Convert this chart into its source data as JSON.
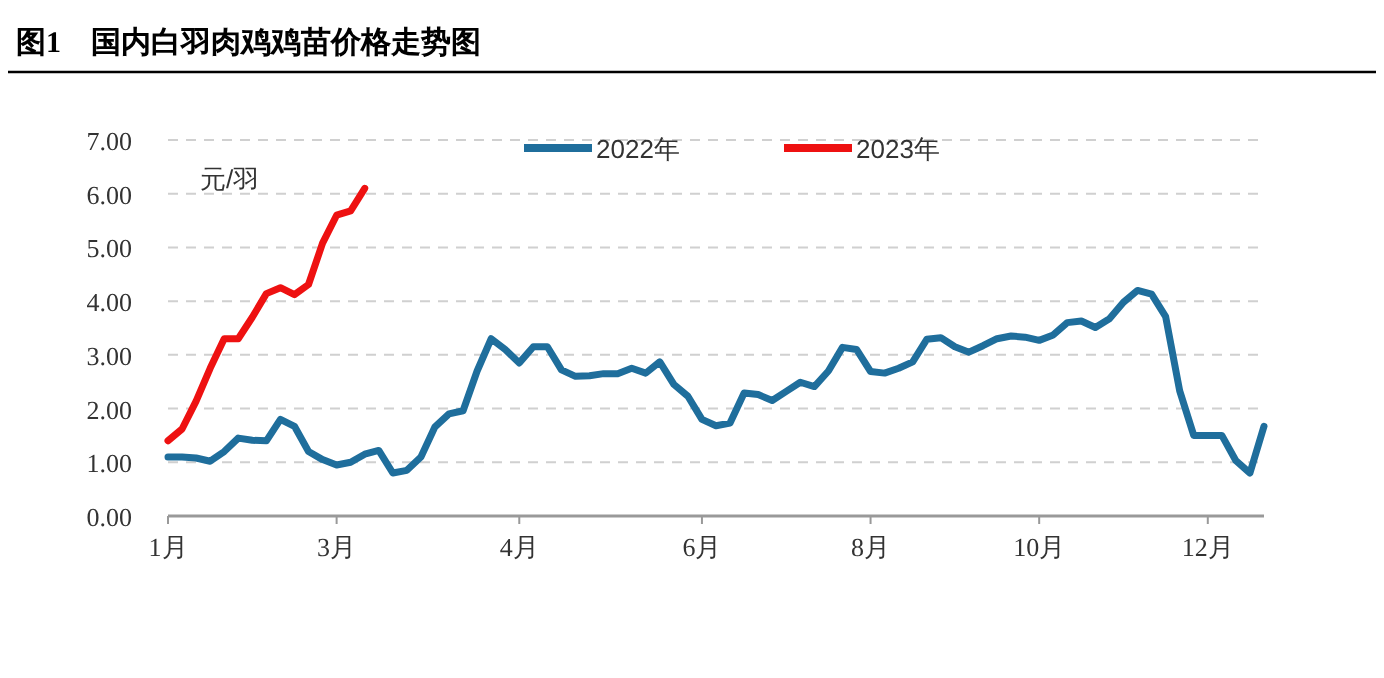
{
  "chart_data": {
    "type": "line",
    "title": "图1　国内白羽肉鸡鸡苗价格走势图",
    "ylabel": "元/羽",
    "categories": [
      "1月",
      null,
      null,
      null,
      null,
      null,
      null,
      null,
      null,
      null,
      null,
      null,
      "3月",
      null,
      null,
      null,
      null,
      null,
      null,
      null,
      null,
      null,
      null,
      null,
      null,
      "4月",
      null,
      null,
      null,
      null,
      null,
      null,
      null,
      null,
      null,
      null,
      null,
      null,
      "6月",
      null,
      null,
      null,
      null,
      null,
      null,
      null,
      null,
      null,
      null,
      null,
      "8月",
      null,
      null,
      null,
      null,
      null,
      null,
      null,
      null,
      null,
      null,
      null,
      "10月",
      null,
      null,
      null,
      null,
      null,
      null,
      null,
      null,
      null,
      null,
      null,
      "12月",
      null,
      null,
      null,
      null
    ],
    "ylim": [
      0,
      7
    ],
    "yticks": [
      {
        "value": 0,
        "label": "0.00"
      },
      {
        "value": 1,
        "label": "1.00"
      },
      {
        "value": 2,
        "label": "2.00"
      },
      {
        "value": 3,
        "label": "3.00"
      },
      {
        "value": 4,
        "label": "4.00"
      },
      {
        "value": 5,
        "label": "5.00"
      },
      {
        "value": 6,
        "label": "6.00"
      },
      {
        "value": 7,
        "label": "7.00"
      }
    ],
    "grid": "y",
    "legend": "top",
    "marker": "none",
    "line_style": "solid",
    "series": [
      {
        "name": "2022年",
        "color": "#1f6e9c",
        "values": [
          1.1,
          1.1,
          1.08,
          1.02,
          1.2,
          1.45,
          1.41,
          1.4,
          1.8,
          1.67,
          1.2,
          1.05,
          0.95,
          1.0,
          1.15,
          1.22,
          0.8,
          0.85,
          1.1,
          1.66,
          1.9,
          1.96,
          2.7,
          3.3,
          3.1,
          2.85,
          3.15,
          3.15,
          2.72,
          2.6,
          2.61,
          2.65,
          2.65,
          2.75,
          2.66,
          2.87,
          2.45,
          2.23,
          1.8,
          1.68,
          1.73,
          2.29,
          2.26,
          2.15,
          2.32,
          2.49,
          2.41,
          2.7,
          3.14,
          3.1,
          2.69,
          2.66,
          2.75,
          2.87,
          3.29,
          3.32,
          3.15,
          3.05,
          3.17,
          3.3,
          3.35,
          3.33,
          3.27,
          3.37,
          3.6,
          3.63,
          3.51,
          3.67,
          3.98,
          4.2,
          4.13,
          3.71,
          2.33,
          1.5,
          1.5,
          1.5,
          1.03,
          0.8,
          1.67
        ]
      },
      {
        "name": "2023年",
        "color": "#ee1111",
        "values": [
          1.4,
          1.62,
          2.14,
          2.75,
          3.3,
          3.3,
          3.7,
          4.14,
          4.25,
          4.12,
          4.31,
          5.08,
          5.6,
          5.68,
          6.1,
          null,
          null,
          null,
          null,
          null,
          null,
          null,
          null,
          null,
          null,
          null,
          null,
          null,
          null,
          null,
          null,
          null,
          null,
          null,
          null,
          null,
          null,
          null,
          null,
          null,
          null,
          null,
          null,
          null,
          null,
          null,
          null,
          null,
          null,
          null,
          null,
          null,
          null,
          null,
          null,
          null,
          null,
          null,
          null,
          null,
          null,
          null,
          null,
          null,
          null,
          null,
          null,
          null,
          null,
          null,
          null,
          null,
          null,
          null,
          null,
          null,
          null,
          null,
          null
        ]
      }
    ]
  }
}
